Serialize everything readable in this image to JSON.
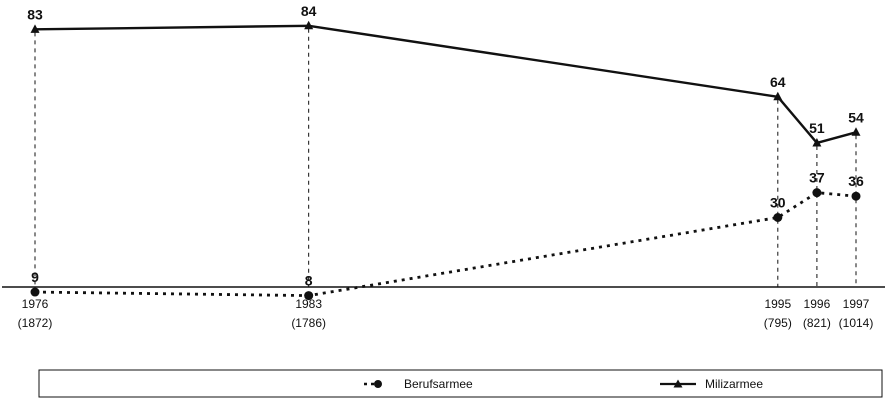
{
  "chart_data": {
    "type": "line",
    "x": [
      1976,
      1983,
      1995,
      1996,
      1997
    ],
    "x_tick_labels": [
      "1976",
      "1983",
      "1995",
      "1996",
      "1997"
    ],
    "x_tick_sublabels": [
      "(1872)",
      "(1786)",
      "(795)",
      "(821)",
      "(1014)"
    ],
    "series": [
      {
        "name": "Berufsarmee",
        "values": [
          9,
          8,
          30,
          37,
          36
        ],
        "style": "dotted",
        "marker": "circle",
        "color": "#111111"
      },
      {
        "name": "Milizarmee",
        "values": [
          83,
          84,
          64,
          51,
          54
        ],
        "style": "solid",
        "marker": "triangle",
        "color": "#111111"
      }
    ],
    "ylim": [
      0,
      90
    ],
    "grid": false,
    "legend_position": "bottom",
    "vertical_drop_lines": true
  }
}
